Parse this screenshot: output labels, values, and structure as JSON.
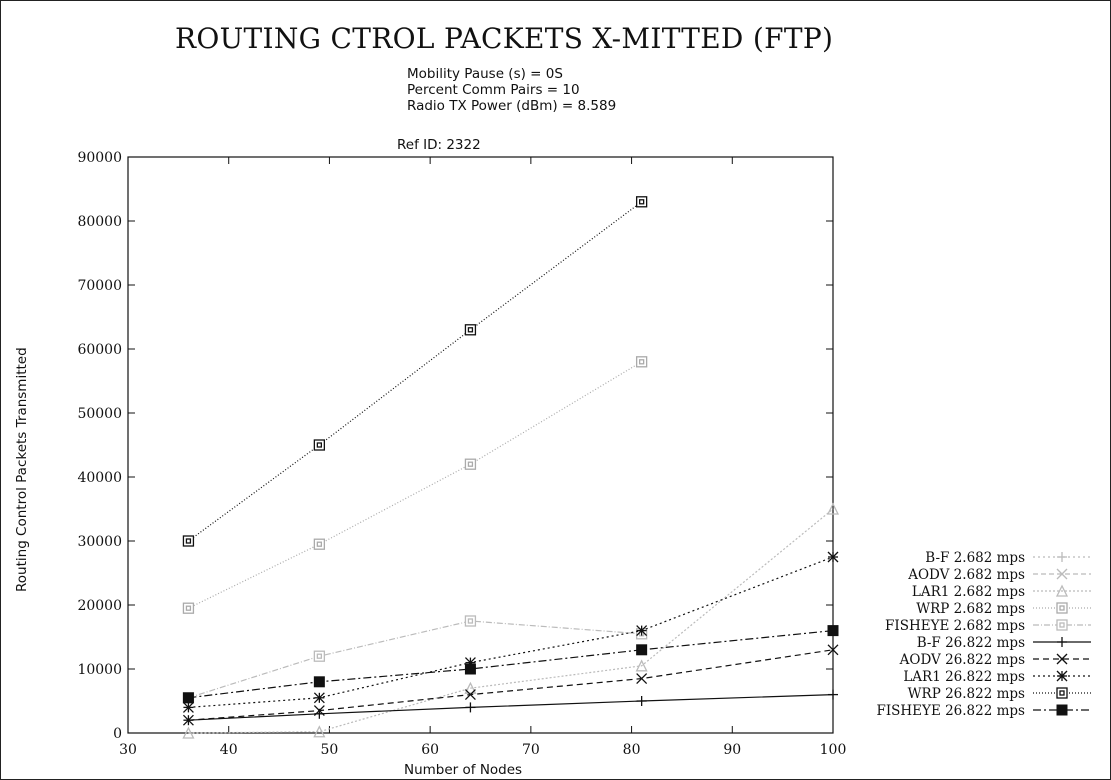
{
  "chart_data": {
    "type": "line",
    "title": "ROUTING CTROL PACKETS X-MITTED (FTP)",
    "subtitle_lines": [
      "Mobility Pause (s) = 0S",
      "Percent Comm Pairs = 10",
      "Radio TX Power (dBm) = 8.589"
    ],
    "ref_id": "Ref ID: 2322",
    "xlabel": "Number of Nodes",
    "ylabel": "Routing Control Packets Transmitted",
    "xlim": [
      30,
      100
    ],
    "ylim": [
      0,
      90000
    ],
    "xticks": [
      30,
      40,
      50,
      60,
      70,
      80,
      90,
      100
    ],
    "yticks": [
      0,
      10000,
      20000,
      30000,
      40000,
      50000,
      60000,
      70000,
      80000,
      90000
    ],
    "grid": false,
    "legend_position": "right",
    "x": [
      36,
      49,
      64,
      81,
      100
    ],
    "series": [
      {
        "name": "B-F 2.682 mps",
        "values": [
          null,
          null,
          null,
          null,
          null
        ],
        "color": "#bbbbbb",
        "dash": "2,3",
        "marker": "plus"
      },
      {
        "name": "AODV 2.682 mps",
        "values": [
          null,
          null,
          null,
          null,
          null
        ],
        "color": "#bbbbbb",
        "dash": "5,3",
        "marker": "x"
      },
      {
        "name": "LAR1 2.682 mps",
        "values": [
          0,
          200,
          7000,
          10500,
          35000
        ],
        "color": "#bbbbbb",
        "dash": "2,2",
        "marker": "triangle"
      },
      {
        "name": "WRP 2.682 mps",
        "values": [
          19500,
          29500,
          42000,
          58000,
          null
        ],
        "color": "#aaaaaa",
        "dash": "1,2",
        "marker": "square"
      },
      {
        "name": "FISHEYE 2.682 mps",
        "values": [
          5500,
          12000,
          17500,
          15500,
          null
        ],
        "color": "#bbbbbb",
        "dash": "6,2,1,2",
        "marker": "square"
      },
      {
        "name": "B-F 26.822 mps",
        "values": [
          2000,
          3000,
          4000,
          5000,
          6000
        ],
        "color": "#111111",
        "dash": "",
        "marker": "plus"
      },
      {
        "name": "AODV 26.822 mps",
        "values": [
          2000,
          3500,
          6000,
          8500,
          13000
        ],
        "color": "#111111",
        "dash": "6,4",
        "marker": "x"
      },
      {
        "name": "LAR1 26.822 mps",
        "values": [
          4000,
          5500,
          11000,
          16000,
          27500
        ],
        "color": "#111111",
        "dash": "2,3",
        "marker": "star"
      },
      {
        "name": "WRP 26.822 mps",
        "values": [
          30000,
          45000,
          63000,
          83000,
          null
        ],
        "color": "#111111",
        "dash": "1,2",
        "marker": "square"
      },
      {
        "name": "FISHEYE 26.822 mps",
        "values": [
          5500,
          8000,
          10000,
          13000,
          16000
        ],
        "color": "#111111",
        "dash": "8,3,2,3",
        "marker": "filled-square"
      }
    ]
  }
}
